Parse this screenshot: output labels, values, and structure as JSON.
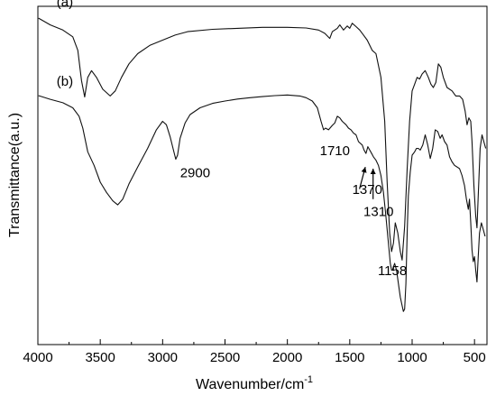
{
  "chart_data": {
    "type": "line",
    "title": "",
    "xlabel": "Wavenumber/cm",
    "xlabel_superscript": "-1",
    "ylabel": "Transmittance(a.u.)",
    "xlim": [
      4000,
      400
    ],
    "ylim": [
      0,
      100
    ],
    "x_ticks": [
      4000,
      3500,
      3000,
      2500,
      2000,
      1500,
      1000,
      500
    ],
    "y_ticks": [],
    "grid": false,
    "series": [
      {
        "name": "(a)",
        "color": "#111111",
        "points": [
          [
            3995,
            96.5
          ],
          [
            3900,
            94.5
          ],
          [
            3800,
            93
          ],
          [
            3720,
            91
          ],
          [
            3680,
            87
          ],
          [
            3650,
            78
          ],
          [
            3625,
            73.2
          ],
          [
            3600,
            79
          ],
          [
            3570,
            81
          ],
          [
            3530,
            79
          ],
          [
            3480,
            75.5
          ],
          [
            3420,
            73.5
          ],
          [
            3380,
            75
          ],
          [
            3330,
            79
          ],
          [
            3270,
            83
          ],
          [
            3200,
            86
          ],
          [
            3100,
            88.5
          ],
          [
            3000,
            90
          ],
          [
            2900,
            91.5
          ],
          [
            2800,
            92.5
          ],
          [
            2600,
            93.2
          ],
          [
            2400,
            93.5
          ],
          [
            2200,
            93.8
          ],
          [
            2000,
            93.8
          ],
          [
            1850,
            93.6
          ],
          [
            1750,
            93
          ],
          [
            1700,
            92
          ],
          [
            1660,
            90.5
          ],
          [
            1640,
            92.5
          ],
          [
            1600,
            93.5
          ],
          [
            1580,
            94.5
          ],
          [
            1550,
            93
          ],
          [
            1520,
            94.2
          ],
          [
            1500,
            93.5
          ],
          [
            1480,
            95
          ],
          [
            1450,
            94
          ],
          [
            1420,
            93
          ],
          [
            1390,
            91.5
          ],
          [
            1360,
            90
          ],
          [
            1320,
            87
          ],
          [
            1290,
            86
          ],
          [
            1250,
            79
          ],
          [
            1220,
            66
          ],
          [
            1200,
            48
          ],
          [
            1180,
            33
          ],
          [
            1165,
            27.5
          ],
          [
            1150,
            30
          ],
          [
            1135,
            36
          ],
          [
            1115,
            33
          ],
          [
            1095,
            27.5
          ],
          [
            1080,
            25
          ],
          [
            1060,
            35
          ],
          [
            1040,
            52
          ],
          [
            1020,
            66
          ],
          [
            1000,
            75
          ],
          [
            980,
            77
          ],
          [
            960,
            79
          ],
          [
            940,
            78.5
          ],
          [
            920,
            80
          ],
          [
            895,
            81
          ],
          [
            870,
            79
          ],
          [
            850,
            77
          ],
          [
            830,
            76
          ],
          [
            810,
            77.5
          ],
          [
            790,
            83
          ],
          [
            770,
            82
          ],
          [
            750,
            79
          ],
          [
            720,
            76
          ],
          [
            680,
            75
          ],
          [
            650,
            73.5
          ],
          [
            620,
            73.5
          ],
          [
            595,
            72.5
          ],
          [
            575,
            69
          ],
          [
            560,
            65
          ],
          [
            545,
            67
          ],
          [
            530,
            66
          ],
          [
            520,
            60
          ],
          [
            505,
            47
          ],
          [
            490,
            38
          ],
          [
            480,
            34.5
          ],
          [
            470,
            44
          ],
          [
            455,
            58
          ],
          [
            440,
            62
          ],
          [
            425,
            60
          ],
          [
            410,
            58
          ]
        ]
      },
      {
        "name": "(b)",
        "color": "#111111",
        "points": [
          [
            3995,
            73.6
          ],
          [
            3900,
            72.5
          ],
          [
            3800,
            71.5
          ],
          [
            3720,
            70
          ],
          [
            3670,
            67.5
          ],
          [
            3640,
            64
          ],
          [
            3600,
            57
          ],
          [
            3550,
            53
          ],
          [
            3500,
            48
          ],
          [
            3450,
            45
          ],
          [
            3400,
            42.5
          ],
          [
            3360,
            41.3
          ],
          [
            3320,
            43
          ],
          [
            3270,
            47.5
          ],
          [
            3200,
            52.5
          ],
          [
            3120,
            58
          ],
          [
            3050,
            63.5
          ],
          [
            3000,
            66
          ],
          [
            2970,
            65
          ],
          [
            2940,
            61.5
          ],
          [
            2910,
            57
          ],
          [
            2895,
            54.8
          ],
          [
            2880,
            56
          ],
          [
            2860,
            61
          ],
          [
            2820,
            65.5
          ],
          [
            2780,
            68
          ],
          [
            2700,
            70
          ],
          [
            2600,
            71.3
          ],
          [
            2500,
            72
          ],
          [
            2400,
            72.6
          ],
          [
            2300,
            73
          ],
          [
            2200,
            73.3
          ],
          [
            2100,
            73.6
          ],
          [
            2000,
            73.8
          ],
          [
            1900,
            73.5
          ],
          [
            1850,
            73
          ],
          [
            1800,
            72
          ],
          [
            1760,
            70
          ],
          [
            1730,
            66
          ],
          [
            1710,
            63.5
          ],
          [
            1695,
            64
          ],
          [
            1670,
            63.5
          ],
          [
            1640,
            64.8
          ],
          [
            1620,
            65.5
          ],
          [
            1600,
            67.5
          ],
          [
            1580,
            67
          ],
          [
            1560,
            66
          ],
          [
            1530,
            65
          ],
          [
            1510,
            64
          ],
          [
            1490,
            63.5
          ],
          [
            1470,
            62.5
          ],
          [
            1450,
            62
          ],
          [
            1430,
            60
          ],
          [
            1400,
            59
          ],
          [
            1385,
            57.5
          ],
          [
            1370,
            56.5
          ],
          [
            1355,
            58.5
          ],
          [
            1340,
            57.5
          ],
          [
            1320,
            56.2
          ],
          [
            1310,
            55.5
          ],
          [
            1290,
            54.5
          ],
          [
            1270,
            53
          ],
          [
            1250,
            50
          ],
          [
            1230,
            45
          ],
          [
            1210,
            38
          ],
          [
            1190,
            30
          ],
          [
            1175,
            24
          ],
          [
            1165,
            22
          ],
          [
            1158,
            22
          ],
          [
            1150,
            23
          ],
          [
            1140,
            24
          ],
          [
            1125,
            22
          ],
          [
            1110,
            18
          ],
          [
            1095,
            14
          ],
          [
            1080,
            11.5
          ],
          [
            1070,
            9.8
          ],
          [
            1060,
            10.5
          ],
          [
            1050,
            18
          ],
          [
            1040,
            33
          ],
          [
            1030,
            44
          ],
          [
            1015,
            51
          ],
          [
            1000,
            56
          ],
          [
            980,
            57
          ],
          [
            965,
            58
          ],
          [
            950,
            58
          ],
          [
            935,
            57.5
          ],
          [
            915,
            59
          ],
          [
            895,
            62
          ],
          [
            875,
            59
          ],
          [
            855,
            55
          ],
          [
            835,
            58
          ],
          [
            815,
            63.5
          ],
          [
            795,
            63
          ],
          [
            775,
            61
          ],
          [
            760,
            62
          ],
          [
            740,
            60
          ],
          [
            720,
            59
          ],
          [
            700,
            55.5
          ],
          [
            680,
            54
          ],
          [
            660,
            53
          ],
          [
            640,
            52.5
          ],
          [
            620,
            52
          ],
          [
            600,
            50
          ],
          [
            580,
            47
          ],
          [
            565,
            43
          ],
          [
            550,
            40
          ],
          [
            540,
            43
          ],
          [
            530,
            36
          ],
          [
            520,
            28
          ],
          [
            510,
            24.5
          ],
          [
            500,
            26
          ],
          [
            490,
            22
          ],
          [
            480,
            18.5
          ],
          [
            470,
            26
          ],
          [
            460,
            33
          ],
          [
            445,
            36
          ],
          [
            430,
            34
          ],
          [
            415,
            32
          ]
        ]
      }
    ],
    "annotations": [
      {
        "text": "(a)",
        "kind": "series-label",
        "x": 3850,
        "y": 100
      },
      {
        "text": "(b)",
        "kind": "series-label",
        "x": 3850,
        "y": 76.5
      },
      {
        "text": "2900",
        "kind": "peak-label",
        "x": 2860,
        "y": 49.5
      },
      {
        "text": "1710",
        "kind": "peak-label",
        "x": 1740,
        "y": 56
      },
      {
        "text": "1370",
        "kind": "peak-label",
        "x": 1480,
        "y": 44.5
      },
      {
        "text": "1310",
        "kind": "peak-label",
        "x": 1390,
        "y": 38
      },
      {
        "text": "1158",
        "kind": "peak-label",
        "x": 1275,
        "y": 20.5
      }
    ],
    "arrows": [
      {
        "label": "1370",
        "from": [
          1422,
          46
        ],
        "to": [
          1375,
          52.5
        ]
      },
      {
        "label": "1310",
        "from": [
          1313,
          43
        ],
        "to": [
          1313,
          52
        ]
      }
    ]
  }
}
